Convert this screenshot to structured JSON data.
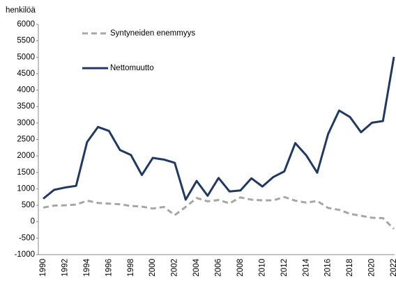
{
  "chart_data": {
    "type": "line",
    "y_axis_label": "henkilöä",
    "categories": [
      "1990",
      null,
      "1992",
      null,
      "1994",
      null,
      "1996",
      null,
      "1998",
      null,
      "2000",
      null,
      "2002",
      null,
      "2004",
      null,
      "2006",
      null,
      "2008",
      null,
      "2010",
      null,
      "2012",
      null,
      "2014",
      null,
      "2016",
      null,
      "2018",
      null,
      "2020",
      null,
      "2022"
    ],
    "series": [
      {
        "name": "Syntyneiden enemmyys",
        "color": "#a6a6a6",
        "style": "dashed",
        "values": [
          430,
          490,
          500,
          520,
          640,
          570,
          550,
          530,
          480,
          460,
          400,
          450,
          200,
          450,
          720,
          620,
          660,
          560,
          740,
          670,
          650,
          650,
          750,
          640,
          580,
          630,
          420,
          360,
          240,
          180,
          120,
          110,
          -220
        ]
      },
      {
        "name": "Nettomuutto",
        "color": "#203864",
        "style": "solid",
        "values": [
          700,
          970,
          1040,
          1090,
          2420,
          2880,
          2760,
          2180,
          2030,
          1420,
          1940,
          1890,
          1790,
          670,
          1240,
          790,
          1330,
          920,
          950,
          1320,
          1070,
          1360,
          1530,
          2390,
          2020,
          1490,
          2670,
          3380,
          3180,
          2720,
          3010,
          3060,
          5010
        ]
      }
    ],
    "ylim": [
      -1000,
      6000
    ],
    "yticks": [
      -1000,
      -500,
      0,
      500,
      1000,
      1500,
      2000,
      2500,
      3000,
      3500,
      4000,
      4500,
      5000,
      5500,
      6000
    ],
    "grid": false
  }
}
